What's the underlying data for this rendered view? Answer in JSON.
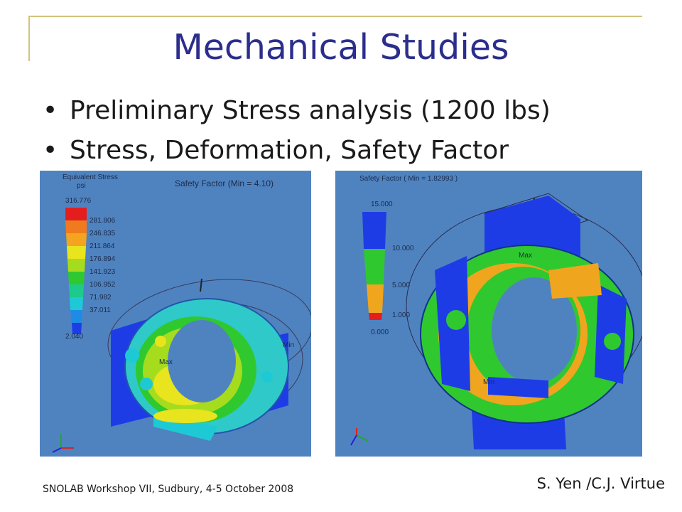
{
  "slide": {
    "title": "Mechanical Studies",
    "bullets": [
      "Preliminary Stress analysis (1200 lbs)",
      "Stress, Deformation, Safety Factor"
    ],
    "footer_left": "SNOLAB Workshop VII, Sudbury, 4-5 October 2008",
    "footer_right": "S. Yen /C.J. Virtue"
  },
  "left_figure": {
    "legend_title_1": "Equivalent Stress",
    "legend_title_2": "psi",
    "caption": "Safety Factor (Min = 4.10)",
    "legend_values": [
      "316.776",
      "281.806",
      "246.835",
      "211.864",
      "176.894",
      "141.923",
      "106.952",
      "71.982",
      "37.011",
      "2.040"
    ],
    "label_max": "Max",
    "label_min": "Min"
  },
  "right_figure": {
    "legend_title": "Safety Factor ( Min = 1.82993 )",
    "legend_values": [
      "15.000",
      "10.000",
      "5.000",
      "1.000",
      "0.000"
    ],
    "label_max": "Max",
    "label_min": "Min"
  }
}
